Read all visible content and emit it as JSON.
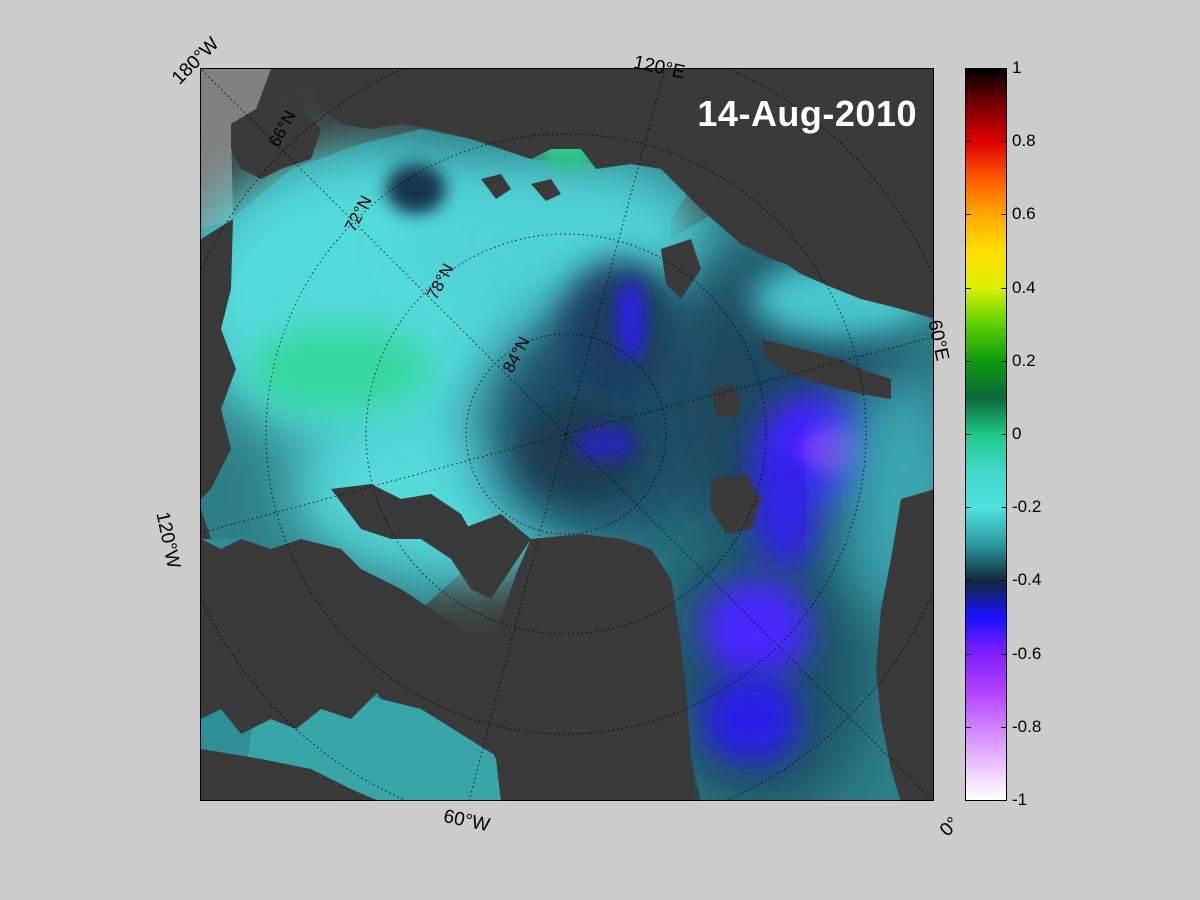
{
  "map": {
    "title": "14-Aug-2010",
    "projection": "north polar stereographic",
    "lon_labels": {
      "w180": "180°W",
      "e120": "120°E",
      "e60": "60°E",
      "zero": "0°",
      "w60": "60°W",
      "w120": "120°W"
    },
    "lat_labels": {
      "n66": "66°N",
      "n72": "72°N",
      "n78": "78°N",
      "n84": "84°N"
    },
    "colors": {
      "figure_bg": "#cccccc",
      "land": "#3a3a3a",
      "no_data": "#808080",
      "field_low": "#2a1aff",
      "field_mid": "#2f6f7a",
      "field_high": "#3fd6c0"
    }
  },
  "colorbar": {
    "min": -1,
    "max": 1,
    "ticks": [
      "1",
      "0.8",
      "0.6",
      "0.4",
      "0.2",
      "0",
      "-0.2",
      "-0.4",
      "-0.6",
      "-0.8",
      "-1"
    ],
    "tick_values": [
      1,
      0.8,
      0.6,
      0.4,
      0.2,
      0,
      -0.2,
      -0.4,
      -0.6,
      -0.8,
      -1
    ],
    "stops": [
      {
        "value": 1.0,
        "color": "#000000"
      },
      {
        "value": 0.9,
        "color": "#7a0000"
      },
      {
        "value": 0.8,
        "color": "#e00000"
      },
      {
        "value": 0.7,
        "color": "#ff5a00"
      },
      {
        "value": 0.6,
        "color": "#ffaa00"
      },
      {
        "value": 0.5,
        "color": "#ffe000"
      },
      {
        "value": 0.4,
        "color": "#d8f000"
      },
      {
        "value": 0.3,
        "color": "#5ad000"
      },
      {
        "value": 0.2,
        "color": "#109a10"
      },
      {
        "value": 0.1,
        "color": "#0a6a3a"
      },
      {
        "value": 0.0,
        "color": "#20c888"
      },
      {
        "value": -0.1,
        "color": "#40d8c8"
      },
      {
        "value": -0.2,
        "color": "#50e0e0"
      },
      {
        "value": -0.3,
        "color": "#2a9aa0"
      },
      {
        "value": -0.4,
        "color": "#102a3a"
      },
      {
        "value": -0.5,
        "color": "#1a10ff"
      },
      {
        "value": -0.6,
        "color": "#8020ff"
      },
      {
        "value": -0.7,
        "color": "#b040ff"
      },
      {
        "value": -0.8,
        "color": "#d080ff"
      },
      {
        "value": -0.9,
        "color": "#e8c0ff"
      },
      {
        "value": -1.0,
        "color": "#ffffff"
      }
    ]
  }
}
